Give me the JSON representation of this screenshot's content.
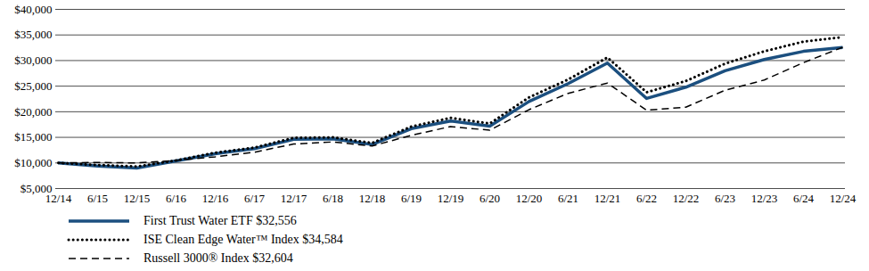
{
  "chart_data": {
    "type": "line",
    "x": [
      "12/14",
      "6/15",
      "12/15",
      "6/16",
      "12/16",
      "6/17",
      "12/17",
      "6/18",
      "12/18",
      "6/19",
      "12/19",
      "6/20",
      "12/20",
      "6/21",
      "12/21",
      "6/22",
      "12/22",
      "6/23",
      "12/23",
      "6/24",
      "12/24"
    ],
    "series": [
      {
        "name": "First Trust Water ETF $32,556",
        "color": "#1b4f7f",
        "line_style": "solid",
        "values": [
          10000,
          9400,
          9000,
          10400,
          11800,
          12800,
          14600,
          14700,
          13600,
          16700,
          18200,
          17200,
          22000,
          25500,
          29500,
          22600,
          24800,
          28000,
          30200,
          31800,
          32556
        ]
      },
      {
        "name": "ISE Clean Edge Water™ Index $34,584",
        "color": "#000000",
        "line_style": "dotted",
        "values": [
          10000,
          9600,
          9300,
          10500,
          12000,
          13000,
          14900,
          15000,
          13900,
          17100,
          18800,
          17700,
          22800,
          26300,
          30600,
          23800,
          26000,
          29400,
          31800,
          33700,
          34584
        ]
      },
      {
        "name": "Russell 3000® Index $32,604",
        "color": "#000000",
        "line_style": "dashed",
        "values": [
          10000,
          10100,
          10000,
          10500,
          11200,
          12100,
          13700,
          14100,
          13300,
          15400,
          17100,
          16400,
          20400,
          23600,
          25600,
          20300,
          20900,
          24200,
          26200,
          29600,
          32604
        ]
      }
    ],
    "ylim": [
      5000,
      40000
    ],
    "yticks": [
      {
        "value": 5000,
        "label": "$5,000"
      },
      {
        "value": 10000,
        "label": "$10,000"
      },
      {
        "value": 15000,
        "label": "$15,000"
      },
      {
        "value": 20000,
        "label": "$20,000"
      },
      {
        "value": 25000,
        "label": "$25,000"
      },
      {
        "value": 30000,
        "label": "$30,000"
      },
      {
        "value": 35000,
        "label": "$35,000"
      },
      {
        "value": 40000,
        "label": "$40,000"
      }
    ],
    "grid": true,
    "legend": "bottom"
  }
}
